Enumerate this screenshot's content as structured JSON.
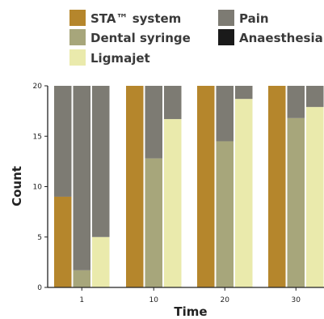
{
  "chart_data": {
    "type": "bar",
    "stacked": "within-group",
    "xlabel": "Time",
    "ylabel": "Count",
    "ylim": [
      0,
      20
    ],
    "yticks": [
      0,
      5,
      10,
      15,
      20
    ],
    "categories": [
      "1",
      "10",
      "20",
      "30"
    ],
    "legend": {
      "placement": "top",
      "entries": [
        {
          "label": "STA™ system",
          "color": "#b5862c"
        },
        {
          "label": "Pain",
          "color": "#7d7b73"
        },
        {
          "label": "Dental syringe",
          "color": "#a7a67b"
        },
        {
          "label": "Anaesthesia",
          "color": "#1a1a1a"
        },
        {
          "label": "Ligmajet",
          "color": "#eaeaac"
        }
      ]
    },
    "groups": [
      {
        "name": "STA™ system",
        "color": "#b5862c",
        "pain": [
          11,
          0,
          0,
          0
        ],
        "anaesthesia": [
          9,
          20,
          20,
          20
        ]
      },
      {
        "name": "Dental syringe",
        "color": "#a7a67b",
        "pain": [
          18.3,
          7.2,
          5.5,
          3.2
        ],
        "anaesthesia": [
          1.7,
          12.8,
          14.5,
          16.8
        ]
      },
      {
        "name": "Ligmajet",
        "color": "#eaeaac",
        "pain": [
          15,
          3.3,
          1.3,
          2.1
        ],
        "anaesthesia": [
          5,
          16.7,
          18.7,
          17.9
        ]
      }
    ],
    "grid": false
  },
  "colors": {
    "pain": "#7d7b73",
    "background": "#ffffff"
  }
}
